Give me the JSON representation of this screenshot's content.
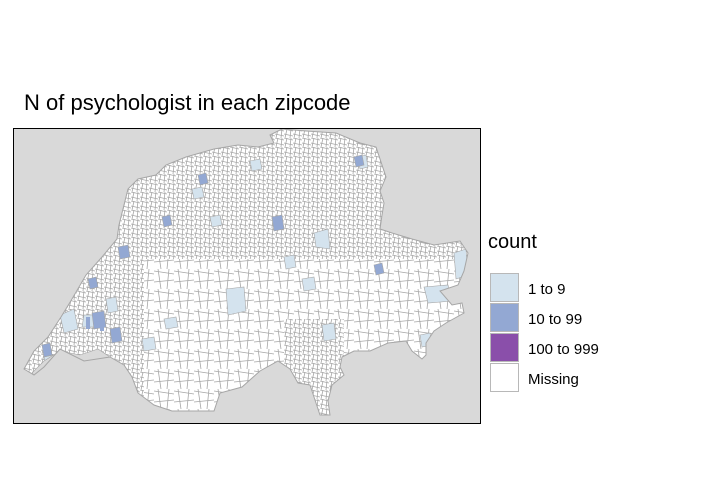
{
  "title": "N of psychologist in each zipcode",
  "map": {
    "region": "Switzerland",
    "panel_background": "#d9d9d9",
    "border_color": "#a6a6a6"
  },
  "legend": {
    "title": "count",
    "items": [
      {
        "label": "1 to 9",
        "color": "#d4e3ee"
      },
      {
        "label": "10 to 99",
        "color": "#93a8d3"
      },
      {
        "label": "100 to 999",
        "color": "#8a4faa"
      },
      {
        "label": "Missing",
        "color": "#ffffff"
      }
    ]
  }
}
